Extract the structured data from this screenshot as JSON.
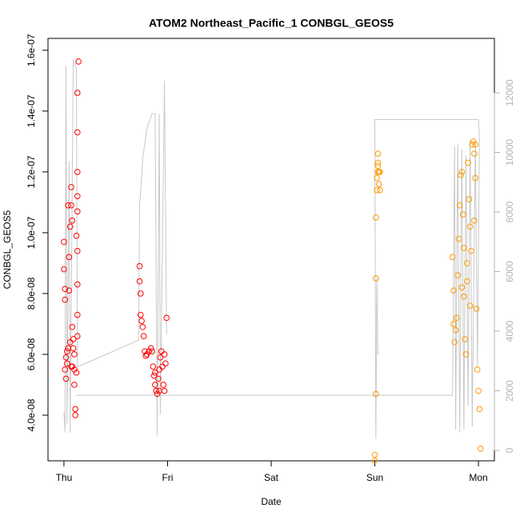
{
  "chart_data": {
    "type": "scatter",
    "title": "ATOM2 Northeast_Pacific_1 CONBGL_GEOS5",
    "x_label": "Date",
    "y_label": "CONBGL_GEOS5",
    "xlim": [
      -0.154,
      4.154
    ],
    "xticks": [
      {
        "value": 0,
        "label": "Thu"
      },
      {
        "value": 1,
        "label": "Fri"
      },
      {
        "value": 2,
        "label": "Sat"
      },
      {
        "value": 3,
        "label": "Sun"
      },
      {
        "value": 4,
        "label": "Mon"
      }
    ],
    "ylim": [
      2.5e-08,
      1.639e-07
    ],
    "yticks": [
      {
        "value": 4e-08,
        "label": "4.0e-08"
      },
      {
        "value": 6e-08,
        "label": "6.0e-08"
      },
      {
        "value": 8e-08,
        "label": "8.0e-08"
      },
      {
        "value": 1e-07,
        "label": "1.0e-07"
      },
      {
        "value": 1.2e-07,
        "label": "1.2e-07"
      },
      {
        "value": 1.4e-07,
        "label": "1.4e-07"
      },
      {
        "value": 1.6e-07,
        "label": "1.6e-07"
      }
    ],
    "y2lim": [
      -349,
      13826
    ],
    "y2ticks": [
      0,
      2000,
      4000,
      6000,
      8000,
      10000,
      12000
    ],
    "y2tick_color": "#b3b3b3",
    "series": [
      {
        "type": "line",
        "axis": "y2",
        "color": "#c8c8c8",
        "x": [
          0.0,
          0.01,
          0.02,
          0.03,
          0.05,
          0.06,
          0.09,
          0.12,
          0.13,
          0.72,
          0.73,
          0.75,
          0.76,
          0.8,
          0.85,
          0.88,
          0.9,
          0.92,
          0.93,
          0.97,
          0.99,
          null,
          0.12,
          3.75,
          3.77,
          3.78,
          3.8,
          3.82,
          3.84,
          3.86,
          3.88,
          3.9,
          3.92,
          3.94,
          3.97,
          3.99,
          4.01,
          4.0,
          3.0,
          3.01,
          3.02,
          3.03
        ],
        "values": [
          1300,
          600,
          12900,
          900,
          9700,
          600,
          13100,
          12800,
          2800,
          3700,
          8200,
          9200,
          9800,
          10800,
          11300,
          11300,
          500,
          11300,
          1200,
          12400,
          3900,
          null,
          1850,
          1850,
          10200,
          700,
          10300,
          600,
          10100,
          700,
          9900,
          1500,
          10400,
          800,
          10300,
          2800,
          10500,
          11100,
          11100,
          400,
          5800,
          3200
        ]
      },
      {
        "type": "scatter",
        "color": "#ff0000",
        "x": [
          0.0,
          0.0,
          0.01,
          0.01,
          0.01,
          0.02,
          0.03,
          0.03,
          0.04,
          0.05,
          0.05,
          0.06,
          0.07,
          0.07,
          0.08,
          0.08,
          0.08,
          0.09,
          0.09,
          0.1,
          0.1,
          0.11,
          0.11,
          0.12,
          0.14,
          0.13,
          0.13,
          0.13,
          0.13,
          0.13,
          0.13,
          0.13,
          0.13,
          0.13,
          0.12,
          0.1,
          0.04,
          0.06,
          0.02,
          0.07,
          0.73,
          0.73,
          0.74,
          0.74,
          0.75,
          0.76,
          0.77,
          0.78,
          0.79,
          0.8,
          0.82,
          0.84,
          0.85,
          0.86,
          0.87,
          0.88,
          0.89,
          0.9,
          0.91,
          0.92,
          0.93,
          0.94,
          0.95,
          0.96,
          0.97,
          0.98,
          0.99,
          0.97,
          0.92,
          0.88
        ],
        "values": [
          9.7e-08,
          8.8e-08,
          7.8e-08,
          8.15e-08,
          5.5e-08,
          5.9e-08,
          6.1e-08,
          5.7e-08,
          1.09e-07,
          8.1e-08,
          9.2e-08,
          1.02e-07,
          1.15e-07,
          1.09e-07,
          1.04e-07,
          6.9e-08,
          5.6e-08,
          6.5e-08,
          6.2e-08,
          5.5e-08,
          5e-08,
          4.2e-08,
          4e-08,
          9.9e-08,
          1.563e-07,
          1.46e-07,
          1.33e-07,
          1.2e-07,
          1.12e-07,
          1.07e-07,
          9.4e-08,
          8.3e-08,
          7.3e-08,
          6.6e-08,
          5.4e-08,
          6e-08,
          6.2e-08,
          6.4e-08,
          5.2e-08,
          5.6e-08,
          8.9e-08,
          8.4e-08,
          8e-08,
          7.3e-08,
          7.1e-08,
          6.9e-08,
          6.6e-08,
          6.1e-08,
          5.95e-08,
          6e-08,
          6.1e-08,
          6.2e-08,
          6.1e-08,
          5.6e-08,
          5.3e-08,
          5e-08,
          4.8e-08,
          4.7e-08,
          5.2e-08,
          5.5e-08,
          5.9e-08,
          6.1e-08,
          5.6e-08,
          5e-08,
          4.8e-08,
          5.7e-08,
          7.2e-08,
          6e-08,
          4.8e-08,
          5.4e-08
        ]
      },
      {
        "type": "scatter",
        "color": "#ff9900",
        "x": [
          3.0,
          3.0,
          3.01,
          3.01,
          3.01,
          3.02,
          3.02,
          3.03,
          3.03,
          3.03,
          3.04,
          3.04,
          3.05,
          3.05,
          3.03,
          3.75,
          3.76,
          3.76,
          3.77,
          3.78,
          3.79,
          3.8,
          3.81,
          3.82,
          3.83,
          3.84,
          3.85,
          3.86,
          3.86,
          3.87,
          3.88,
          3.89,
          3.9,
          3.91,
          3.92,
          3.93,
          3.94,
          3.95,
          3.96,
          3.97,
          3.98,
          3.99,
          4.0,
          4.01,
          4.02,
          3.96,
          3.92,
          3.89,
          3.97,
          3.84
        ],
        "values": [
          2.5e-08,
          2.7e-08,
          4.7e-08,
          8.5e-08,
          1.05e-07,
          1.14e-07,
          1.18e-07,
          1.2e-07,
          1.23e-07,
          1.26e-07,
          1.2e-07,
          1.16e-07,
          1.14e-07,
          1.2e-07,
          1.22e-07,
          9.2e-08,
          8.1e-08,
          7e-08,
          6.4e-08,
          6.8e-08,
          7.2e-08,
          8.6e-08,
          9.8e-08,
          1.09e-07,
          1.19e-07,
          1.2e-07,
          1.06e-07,
          9.5e-08,
          7.9e-08,
          6.5e-08,
          6e-08,
          8.4e-08,
          1.23e-07,
          1.11e-07,
          1.02e-07,
          9.4e-08,
          1.29e-07,
          1.3e-07,
          1.26e-07,
          1.18e-07,
          7.5e-08,
          5.5e-08,
          4.8e-08,
          4.2e-08,
          2.9e-08,
          1.04e-07,
          7.6e-08,
          9e-08,
          1.29e-07,
          8.2e-08
        ]
      }
    ]
  }
}
